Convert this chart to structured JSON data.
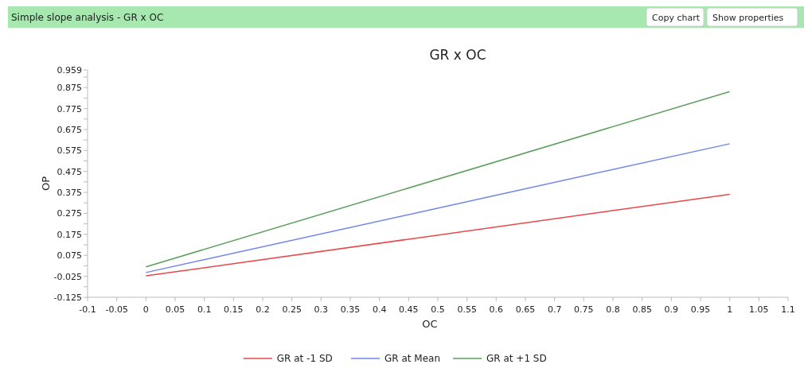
{
  "chart_data": {
    "type": "line",
    "title": "GR x OC",
    "xlabel": "OC",
    "ylabel": "OP",
    "annotations": [
      "Simple slope analysis - GR x OC",
      "Copy chart",
      "Show properties"
    ],
    "x": [
      0,
      1
    ],
    "series": [
      {
        "name": "GR at -1 SD",
        "color": "#e8474c",
        "values": [
          -0.023,
          0.366
        ]
      },
      {
        "name": "GR at Mean",
        "color": "#6f86e8",
        "values": [
          -0.007,
          0.607
        ]
      },
      {
        "name": "GR at +1 SD",
        "color": "#5e9e5e",
        "values": [
          0.02,
          0.856
        ]
      }
    ],
    "xlim": [
      -0.1,
      1.1
    ],
    "xticks": [
      -0.1,
      -0.05,
      0,
      0.05,
      0.1,
      0.15,
      0.2,
      0.25,
      0.3,
      0.35,
      0.4,
      0.45,
      0.5,
      0.55,
      0.6,
      0.65,
      0.7,
      0.75,
      0.8,
      0.85,
      0.9,
      0.95,
      1,
      1.05,
      1.1
    ],
    "ylim": [
      -0.125,
      0.959
    ],
    "yticks": [
      -0.125,
      {
        "value": -0.075,
        "label": null
      },
      -0.025,
      {
        "value": 0.025,
        "label": null
      },
      0.075,
      {
        "value": 0.125,
        "label": null
      },
      0.175,
      {
        "value": 0.225,
        "label": null
      },
      0.275,
      {
        "value": 0.325,
        "label": null
      },
      0.375,
      {
        "value": 0.425,
        "label": null
      },
      0.475,
      {
        "value": 0.525,
        "label": null
      },
      0.575,
      {
        "value": 0.625,
        "label": null
      },
      0.675,
      {
        "value": 0.725,
        "label": null
      },
      0.775,
      {
        "value": 0.825,
        "label": null
      },
      0.875,
      {
        "value": 0.925,
        "label": null
      },
      0.959
    ],
    "grid": false,
    "legend": "bottom",
    "marker": "none",
    "line_style": "solid"
  }
}
